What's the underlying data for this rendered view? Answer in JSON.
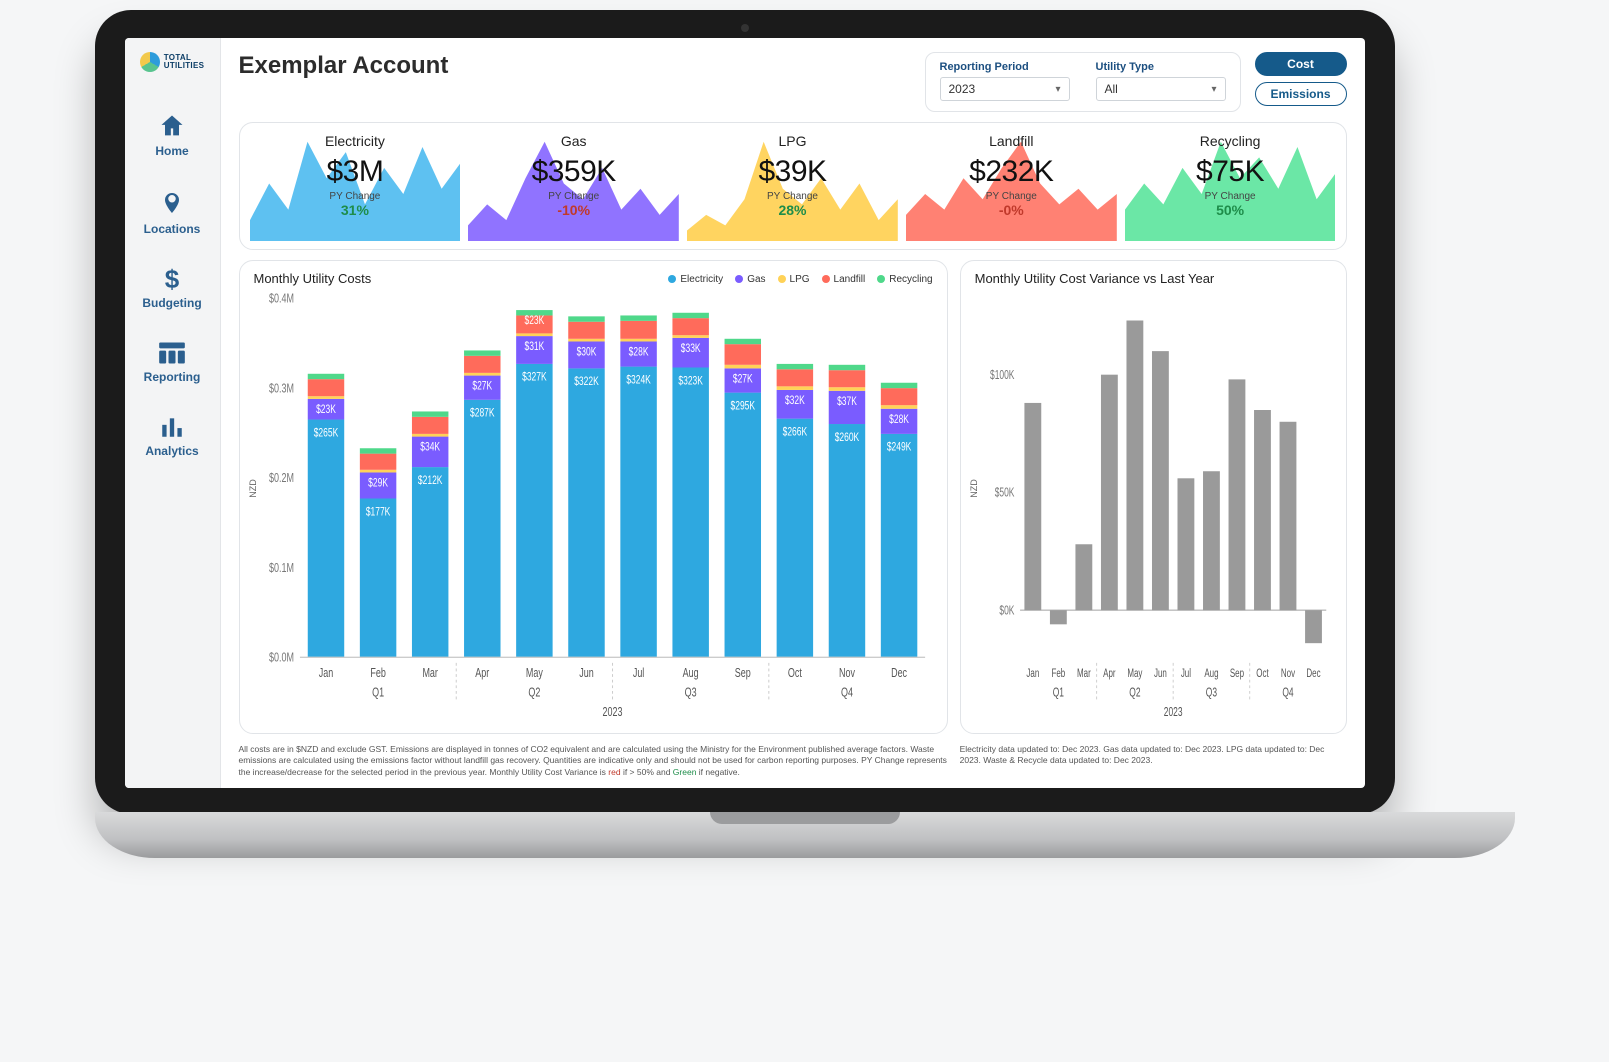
{
  "brand": {
    "line1": "TOTAL",
    "line2": "UTILITIES"
  },
  "sidebar": {
    "items": [
      {
        "label": "Home",
        "icon": "home"
      },
      {
        "label": "Locations",
        "icon": "pin"
      },
      {
        "label": "Budgeting",
        "icon": "dollar"
      },
      {
        "label": "Reporting",
        "icon": "table"
      },
      {
        "label": "Analytics",
        "icon": "bars"
      }
    ]
  },
  "header": {
    "title": "Exemplar Account",
    "filters": {
      "period_label": "Reporting Period",
      "period_value": "2023",
      "utility_label": "Utility Type",
      "utility_value": "All"
    },
    "toggles": {
      "cost": "Cost",
      "emissions": "Emissions"
    }
  },
  "kpis": [
    {
      "label": "Electricity",
      "value": "$3M",
      "sub": "PY Change",
      "pct": "31%",
      "pct_color": "#1e8d4a",
      "fill": "#55bef0",
      "spark": [
        0.2,
        0.55,
        0.3,
        0.95,
        0.6,
        0.85,
        0.35,
        0.7,
        0.45,
        0.9,
        0.5,
        0.75
      ]
    },
    {
      "label": "Gas",
      "value": "$359K",
      "sub": "PY Change",
      "pct": "-10%",
      "pct_color": "#c0392b",
      "fill": "#8a6cff",
      "spark": [
        0.15,
        0.35,
        0.2,
        0.6,
        0.95,
        0.55,
        0.4,
        0.7,
        0.3,
        0.5,
        0.25,
        0.45
      ]
    },
    {
      "label": "LPG",
      "value": "$39K",
      "sub": "PY Change",
      "pct": "28%",
      "pct_color": "#1e8d4a",
      "fill": "#ffd257",
      "spark": [
        0.1,
        0.25,
        0.15,
        0.4,
        0.95,
        0.5,
        0.35,
        0.6,
        0.3,
        0.55,
        0.2,
        0.4
      ]
    },
    {
      "label": "Landfill",
      "value": "$232K",
      "sub": "PY Change",
      "pct": "-0%",
      "pct_color": "#c0392b",
      "fill": "#ff7a6b",
      "spark": [
        0.25,
        0.45,
        0.3,
        0.6,
        0.4,
        0.7,
        0.95,
        0.55,
        0.35,
        0.5,
        0.3,
        0.45
      ]
    },
    {
      "label": "Recycling",
      "value": "$75K",
      "sub": "PY Change",
      "pct": "50%",
      "pct_color": "#1e8d4a",
      "fill": "#63e6a1",
      "spark": [
        0.3,
        0.55,
        0.35,
        0.7,
        0.45,
        0.95,
        0.6,
        0.8,
        0.5,
        0.9,
        0.4,
        0.65
      ]
    }
  ],
  "costs_chart": {
    "title": "Monthly Utility Costs",
    "y_axis_label": "NZD",
    "y_ticks": [
      "$0.0M",
      "$0.1M",
      "$0.2M",
      "$0.3M",
      "$0.4M"
    ],
    "y_max": 400000,
    "months": [
      "Jan",
      "Feb",
      "Mar",
      "Apr",
      "May",
      "Jun",
      "Jul",
      "Aug",
      "Sep",
      "Oct",
      "Nov",
      "Dec"
    ],
    "quarters": [
      "Q1",
      "Q2",
      "Q3",
      "Q4"
    ],
    "year": "2023",
    "legend": [
      "Electricity",
      "Gas",
      "LPG",
      "Landfill",
      "Recycling"
    ],
    "series_colors": {
      "Electricity": "#2ea8e0",
      "Gas": "#7a5cff",
      "LPG": "#ffd257",
      "Landfill": "#ff6b5b",
      "Recycling": "#4fd88a"
    },
    "labels_top": [
      "$23K",
      "$29K",
      "$34K",
      "$27K",
      "$31K",
      "$30K",
      "$28K",
      "$33K",
      "$27K",
      "$32K",
      "$37K",
      "$28K"
    ],
    "labels_mid": [
      "$265K",
      "$177K",
      "$212K",
      "$287K",
      "$327K",
      "$322K",
      "$324K",
      "$323K",
      "$295K",
      "$266K",
      "$260K",
      "$249K"
    ],
    "labels_extra": [
      "",
      "",
      "",
      "",
      "$23K",
      "",
      "",
      "",
      "",
      "",
      "",
      ""
    ],
    "data": [
      {
        "Electricity": 265000,
        "Gas": 23000,
        "LPG": 3000,
        "Landfill": 19000,
        "Recycling": 6000
      },
      {
        "Electricity": 177000,
        "Gas": 29000,
        "LPG": 3000,
        "Landfill": 18000,
        "Recycling": 6000
      },
      {
        "Electricity": 212000,
        "Gas": 34000,
        "LPG": 3000,
        "Landfill": 19000,
        "Recycling": 6000
      },
      {
        "Electricity": 287000,
        "Gas": 27000,
        "LPG": 3000,
        "Landfill": 19000,
        "Recycling": 6000
      },
      {
        "Electricity": 327000,
        "Gas": 31000,
        "LPG": 3000,
        "Landfill": 20000,
        "Recycling": 6000
      },
      {
        "Electricity": 322000,
        "Gas": 30000,
        "LPG": 3000,
        "Landfill": 19000,
        "Recycling": 6000
      },
      {
        "Electricity": 324000,
        "Gas": 28000,
        "LPG": 3000,
        "Landfill": 20000,
        "Recycling": 6000
      },
      {
        "Electricity": 323000,
        "Gas": 33000,
        "LPG": 3000,
        "Landfill": 19000,
        "Recycling": 6000
      },
      {
        "Electricity": 295000,
        "Gas": 27000,
        "LPG": 4000,
        "Landfill": 23000,
        "Recycling": 6000
      },
      {
        "Electricity": 266000,
        "Gas": 32000,
        "LPG": 4000,
        "Landfill": 19000,
        "Recycling": 6000
      },
      {
        "Electricity": 260000,
        "Gas": 37000,
        "LPG": 4000,
        "Landfill": 19000,
        "Recycling": 6000
      },
      {
        "Electricity": 249000,
        "Gas": 28000,
        "LPG": 4000,
        "Landfill": 19000,
        "Recycling": 6000
      }
    ]
  },
  "variance_chart": {
    "title": "Monthly Utility Cost Variance vs Last Year",
    "y_axis_label": "NZD",
    "y_ticks": [
      "$0K",
      "$50K",
      "$100K"
    ],
    "y_min": -20000,
    "y_max": 130000,
    "bar_color": "#9a9a9a",
    "months": [
      "Jan",
      "Feb",
      "Mar",
      "Apr",
      "May",
      "Jun",
      "Jul",
      "Aug",
      "Sep",
      "Oct",
      "Nov",
      "Dec"
    ],
    "quarters": [
      "Q1",
      "Q2",
      "Q3",
      "Q4"
    ],
    "year": "2023",
    "values": [
      88000,
      -6000,
      28000,
      100000,
      123000,
      110000,
      56000,
      59000,
      98000,
      85000,
      80000,
      -14000
    ]
  },
  "footer_left": "All costs are in $NZD and exclude GST. Emissions are displayed in tonnes of CO2 equivalent and are calculated using the Ministry for the Environment published average factors.  Waste emissions are calculated using the emissions factor without landfill gas recovery.  Quantities are indicative only and should not be used for carbon reporting purposes. PY Change represents the increase/decrease for the selected period in the previous year.  Monthly Utility Cost Variance is ",
  "footer_left_red": "red",
  "footer_left_mid": " if > 50% and ",
  "footer_left_green": "Green",
  "footer_left_end": " if negative.",
  "footer_right": "Electricity data updated to: Dec 2023. Gas data updated to: Dec 2023. LPG data updated to: Dec 2023. Waste & Recycle data updated to: Dec 2023."
}
